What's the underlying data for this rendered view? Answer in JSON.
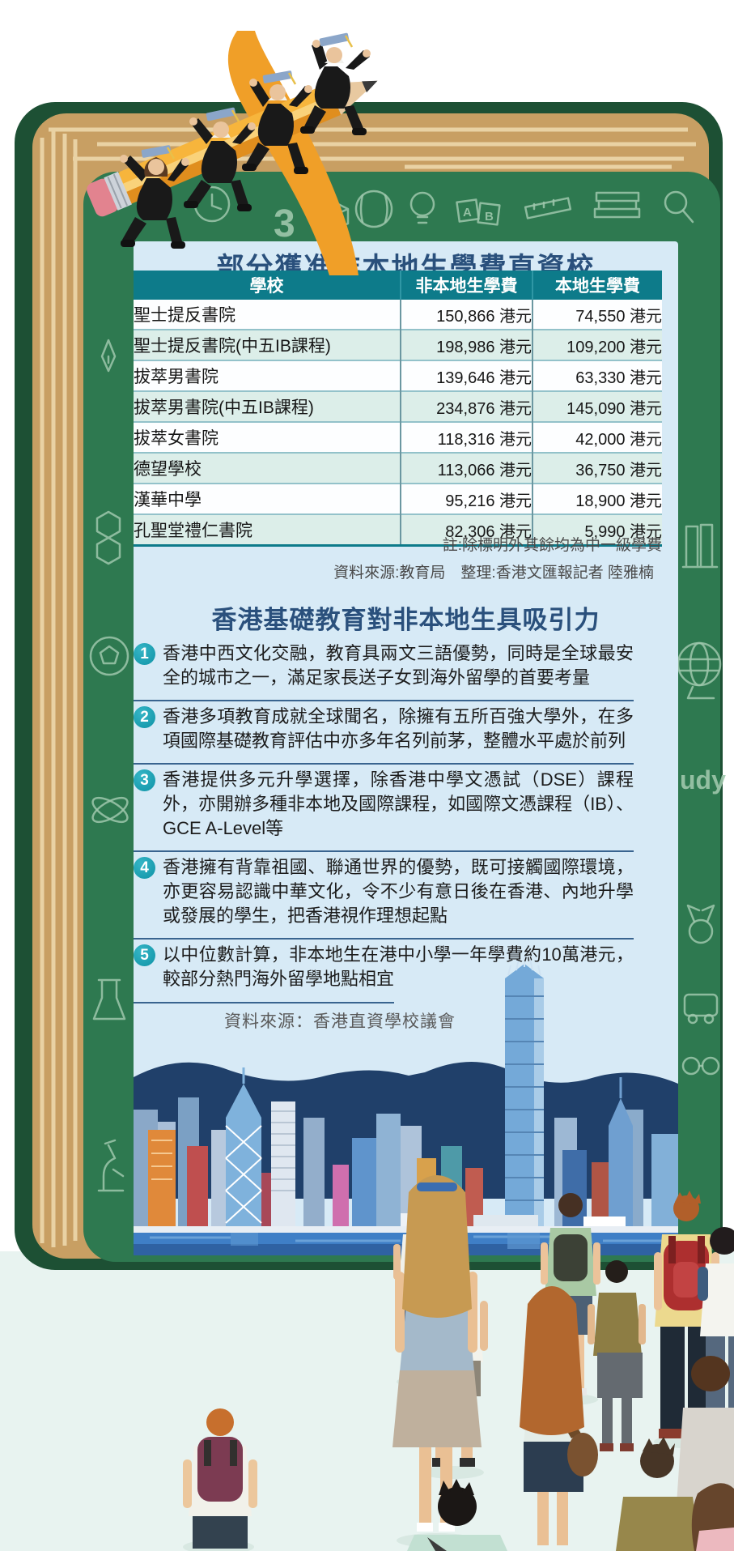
{
  "fees_section": {
    "title": "部分獲准非本地生學費直資校",
    "table": {
      "headers": [
        "學校",
        "非本地生學費",
        "本地生學費"
      ],
      "rows": [
        [
          "聖士提反書院",
          "150,866 港元",
          "74,550 港元"
        ],
        [
          "聖士提反書院(中五IB課程)",
          "198,986 港元",
          "109,200 港元"
        ],
        [
          "拔萃男書院",
          "139,646 港元",
          "63,330 港元"
        ],
        [
          "拔萃男書院(中五IB課程)",
          "234,876 港元",
          "145,090 港元"
        ],
        [
          "拔萃女書院",
          "118,316 港元",
          "42,000 港元"
        ],
        [
          "德望學校",
          "113,066 港元",
          "36,750 港元"
        ],
        [
          "漢華中學",
          "95,216 港元",
          "18,900 港元"
        ],
        [
          "孔聖堂禮仁書院",
          "82,306 港元",
          "5,990 港元"
        ]
      ]
    },
    "note": "註:除標明外其餘均為中一級學費",
    "credits": "資料來源:教育局　整理:香港文匯報記者 陸雅楠"
  },
  "appeal_section": {
    "title": "香港基礎教育對非本地生具吸引力",
    "items": [
      {
        "num": "1",
        "text": "香港中西文化交融，教育具兩文三語優勢，同時是全球最安全的城市之一，滿足家長送子女到海外留學的首要考量"
      },
      {
        "num": "2",
        "text": "香港多項教育成就全球聞名，除擁有五所百強大學外，在多項國際基礎教育評估中亦多年名列前茅，整體水平處於前列"
      },
      {
        "num": "3",
        "text": "香港提供多元升學選擇，除香港中學文憑試（DSE）課程外，亦開辦多種非本地及國際課程，如國際文憑課程（IB）、GCE A-Level等"
      },
      {
        "num": "4",
        "text": "香港擁有背靠祖國、聯通世界的優勢，既可接觸國際環境，亦更容易認識中華文化，令不少有意日後在香港、內地升學或發展的學生，把香港視作理想起點"
      },
      {
        "num": "5",
        "text": "以中位數計算，非本地生在港中小學一年學費約10萬港元，較部分熱門海外留學地點相宜"
      }
    ],
    "source": "資料來源：香港直資學校議會"
  },
  "decor": {
    "study_text": "udy",
    "chalk_three": "3",
    "chalk_numbers": "123",
    "colors": {
      "cover_green": "#2e7950",
      "spine_green": "#1d5034",
      "pages_tan": "#c89f63",
      "panel_blue": "#d7eaf6",
      "header_teal": "#0d7b8a",
      "row_mint": "#dceee9",
      "title_blue": "#2a507c",
      "badge_teal": "#1b9cae",
      "rule_blue": "#39648f",
      "pencil_orange": "#f09f28"
    }
  }
}
